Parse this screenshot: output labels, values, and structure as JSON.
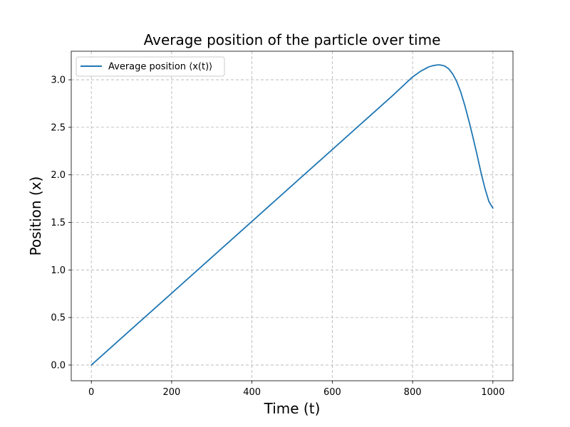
{
  "chart_data": {
    "type": "line",
    "title": "Average position of the particle over time",
    "xlabel": "Time (t)",
    "ylabel": "Position (x)",
    "xlim": [
      -50,
      1050
    ],
    "ylim": [
      -0.165,
      3.3
    ],
    "xticks": [
      0,
      200,
      400,
      600,
      800,
      1000
    ],
    "xtick_labels": [
      "0",
      "200",
      "400",
      "600",
      "800",
      "1000"
    ],
    "yticks": [
      0.0,
      0.5,
      1.0,
      1.5,
      2.0,
      2.5,
      3.0
    ],
    "ytick_labels": [
      "0.0",
      "0.5",
      "1.0",
      "1.5",
      "2.0",
      "2.5",
      "3.0"
    ],
    "grid": true,
    "legend_placement": "upper-left",
    "series": [
      {
        "name": "Average position ⟨x(t)⟩",
        "color": "#1f77b4",
        "x": [
          0,
          100,
          200,
          300,
          400,
          500,
          600,
          700,
          750,
          800,
          820,
          840,
          850,
          860,
          865,
          870,
          880,
          890,
          900,
          910,
          920,
          930,
          940,
          950,
          960,
          970,
          980,
          990,
          1000
        ],
        "y": [
          0.0,
          0.378,
          0.755,
          1.133,
          1.511,
          1.889,
          2.266,
          2.644,
          2.833,
          3.03,
          3.09,
          3.135,
          3.148,
          3.155,
          3.157,
          3.155,
          3.145,
          3.115,
          3.06,
          2.98,
          2.87,
          2.73,
          2.57,
          2.4,
          2.22,
          2.03,
          1.86,
          1.72,
          1.65
        ]
      }
    ]
  }
}
